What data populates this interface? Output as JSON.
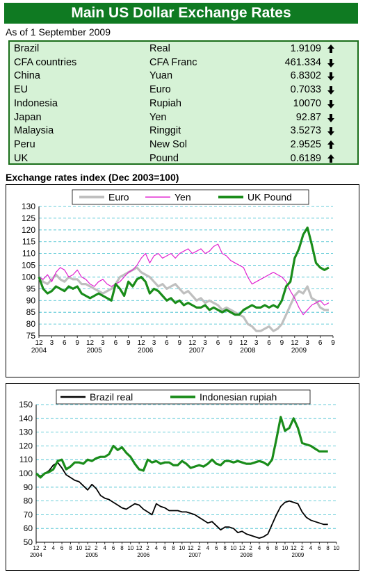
{
  "header": {
    "title": "Main US Dollar Exchange Rates",
    "as_of": "As of 1 September 2009",
    "color": "#0f7a22"
  },
  "rates": [
    {
      "country": "Brazil",
      "currency": "Real",
      "value": "1.9109",
      "direction": "up"
    },
    {
      "country": "CFA countries",
      "currency": "CFA Franc",
      "value": "461.334",
      "direction": "down"
    },
    {
      "country": "China",
      "currency": "Yuan",
      "value": "6.8302",
      "direction": "down"
    },
    {
      "country": "EU",
      "currency": "Euro",
      "value": "0.7033",
      "direction": "down"
    },
    {
      "country": "Indonesia",
      "currency": "Rupiah",
      "value": "10070",
      "direction": "down"
    },
    {
      "country": "Japan",
      "currency": "Yen",
      "value": "92.87",
      "direction": "down"
    },
    {
      "country": "Malaysia",
      "currency": "Ringgit",
      "value": "3.5273",
      "direction": "down"
    },
    {
      "country": "Peru",
      "currency": "New Sol",
      "value": "2.9525",
      "direction": "up"
    },
    {
      "country": "UK",
      "currency": "Pound",
      "value": "0.6189",
      "direction": "up"
    }
  ],
  "icons": {
    "up": "arrow-up-icon",
    "down": "arrow-down-icon"
  },
  "chart_data": [
    {
      "type": "line",
      "title": "Exchange rates index (Dec 2003=100)",
      "ylim": [
        75,
        130
      ],
      "yticks": [
        75,
        80,
        85,
        90,
        95,
        100,
        105,
        110,
        115,
        120,
        125,
        130
      ],
      "xlim": [
        0,
        69
      ],
      "month_ticks": [
        "12",
        "3",
        "6",
        "9",
        "12",
        "3",
        "6",
        "9",
        "12",
        "3",
        "6",
        "9",
        "12",
        "3",
        "6",
        "9",
        "12",
        "3",
        "6",
        "9",
        "12",
        "3",
        "6",
        "9"
      ],
      "year_labels": [
        {
          "label": "2004",
          "x": 0
        },
        {
          "label": "2005",
          "x": 13
        },
        {
          "label": "2006",
          "x": 25
        },
        {
          "label": "2007",
          "x": 37
        },
        {
          "label": "2008",
          "x": 49
        },
        {
          "label": "2009",
          "x": 61
        }
      ],
      "grid": true,
      "legend_position": "top",
      "series": [
        {
          "name": "Euro",
          "color": "#bfbfbf",
          "x": [
            0,
            1,
            2,
            3,
            4,
            5,
            6,
            7,
            8,
            9,
            10,
            11,
            12,
            13,
            14,
            15,
            16,
            17,
            18,
            19,
            20,
            21,
            22,
            23,
            24,
            25,
            26,
            27,
            28,
            29,
            30,
            31,
            32,
            33,
            34,
            35,
            36,
            37,
            38,
            39,
            40,
            41,
            42,
            43,
            44,
            45,
            46,
            47,
            48,
            49,
            50,
            51,
            52,
            53,
            54,
            55,
            56,
            57,
            58,
            59,
            60,
            61,
            62,
            63,
            64,
            65,
            66,
            67,
            68
          ],
          "y": [
            100,
            98,
            97,
            99,
            101,
            99,
            98,
            100,
            99,
            99,
            97,
            97,
            96,
            95,
            94,
            93,
            94,
            95,
            97,
            100,
            101,
            102,
            103,
            104,
            102,
            101,
            100,
            98,
            96,
            97,
            95,
            96,
            97,
            95,
            93,
            94,
            92,
            90,
            91,
            89,
            90,
            89,
            88,
            86,
            87,
            86,
            85,
            84,
            83,
            80,
            79,
            77,
            77,
            78,
            79,
            77,
            78,
            80,
            84,
            88,
            92,
            94,
            93,
            96,
            91,
            90,
            87,
            86,
            86
          ]
        },
        {
          "name": "Yen",
          "color": "#e020d0",
          "x": [
            0,
            1,
            2,
            3,
            4,
            5,
            6,
            7,
            8,
            9,
            10,
            11,
            12,
            13,
            14,
            15,
            16,
            17,
            18,
            19,
            20,
            21,
            22,
            23,
            24,
            25,
            26,
            27,
            28,
            29,
            30,
            31,
            32,
            33,
            34,
            35,
            36,
            37,
            38,
            39,
            40,
            41,
            42,
            43,
            44,
            45,
            46,
            47,
            48,
            49,
            50,
            51,
            52,
            53,
            54,
            55,
            56,
            57,
            58,
            59,
            60,
            61,
            62,
            63,
            64,
            65,
            66,
            67,
            68
          ],
          "y": [
            100,
            99,
            101,
            98,
            102,
            104,
            103,
            100,
            101,
            103,
            100,
            99,
            97,
            96,
            98,
            99,
            97,
            96,
            97,
            98,
            100,
            102,
            103,
            105,
            108,
            110,
            106,
            109,
            110,
            108,
            109,
            110,
            108,
            110,
            111,
            112,
            110,
            111,
            112,
            110,
            111,
            113,
            114,
            110,
            109,
            107,
            106,
            105,
            104,
            100,
            97,
            98,
            99,
            100,
            101,
            102,
            101,
            100,
            98,
            94,
            91,
            87,
            84,
            86,
            88,
            89,
            90,
            88,
            89
          ]
        },
        {
          "name": "UK Pound",
          "color": "#1a8c1a",
          "x": [
            0,
            1,
            2,
            3,
            4,
            5,
            6,
            7,
            8,
            9,
            10,
            11,
            12,
            13,
            14,
            15,
            16,
            17,
            18,
            19,
            20,
            21,
            22,
            23,
            24,
            25,
            26,
            27,
            28,
            29,
            30,
            31,
            32,
            33,
            34,
            35,
            36,
            37,
            38,
            39,
            40,
            41,
            42,
            43,
            44,
            45,
            46,
            47,
            48,
            49,
            50,
            51,
            52,
            53,
            54,
            55,
            56,
            57,
            58,
            59,
            60,
            61,
            62,
            63,
            64,
            65,
            66,
            67,
            68
          ],
          "y": [
            100,
            95,
            93,
            94,
            96,
            95,
            94,
            96,
            95,
            96,
            93,
            92,
            91,
            92,
            93,
            92,
            91,
            90,
            97,
            95,
            92,
            98,
            96,
            99,
            100,
            98,
            93,
            95,
            94,
            92,
            90,
            91,
            89,
            90,
            88,
            89,
            88,
            87,
            87,
            88,
            86,
            87,
            86,
            85,
            86,
            85,
            84,
            84,
            86,
            87,
            88,
            87,
            87,
            88,
            87,
            88,
            87,
            90,
            96,
            98,
            108,
            112,
            118,
            121,
            114,
            106,
            104,
            103,
            104
          ]
        }
      ]
    },
    {
      "type": "line",
      "ylim": [
        50,
        150
      ],
      "yticks": [
        50,
        60,
        70,
        80,
        90,
        100,
        110,
        120,
        130,
        140,
        150
      ],
      "xlim": [
        0,
        70
      ],
      "month_ticks": [
        "12",
        "2",
        "4",
        "6",
        "8",
        "10",
        "12",
        "2",
        "4",
        "6",
        "8",
        "10",
        "12",
        "2",
        "4",
        "6",
        "8",
        "10",
        "12",
        "2",
        "4",
        "6",
        "8",
        "10",
        "12",
        "2",
        "4",
        "6",
        "8",
        "10",
        "12",
        "2",
        "4",
        "6",
        "8",
        "10"
      ],
      "year_labels": [
        {
          "label": "2004",
          "x": 0
        },
        {
          "label": "2005",
          "x": 13
        },
        {
          "label": "2006",
          "x": 25
        },
        {
          "label": "2007",
          "x": 37
        },
        {
          "label": "2008",
          "x": 49
        },
        {
          "label": "2009",
          "x": 61
        }
      ],
      "grid": true,
      "legend_position": "top",
      "series": [
        {
          "name": "Brazil real",
          "color": "#000000",
          "x": [
            0,
            1,
            2,
            3,
            4,
            5,
            6,
            7,
            8,
            9,
            10,
            11,
            12,
            13,
            14,
            15,
            16,
            17,
            18,
            19,
            20,
            21,
            22,
            23,
            24,
            25,
            26,
            27,
            28,
            29,
            30,
            31,
            32,
            33,
            34,
            35,
            36,
            37,
            38,
            39,
            40,
            41,
            42,
            43,
            44,
            45,
            46,
            47,
            48,
            49,
            50,
            51,
            52,
            53,
            54,
            55,
            56,
            57,
            58,
            59,
            60,
            61,
            62,
            63,
            64,
            65,
            66,
            67,
            68
          ],
          "y": [
            100,
            98,
            100,
            102,
            106,
            108,
            104,
            99,
            97,
            95,
            94,
            91,
            88,
            92,
            89,
            84,
            82,
            81,
            79,
            77,
            75,
            74,
            76,
            78,
            77,
            74,
            72,
            70,
            78,
            76,
            75,
            73,
            73,
            73,
            72,
            72,
            71,
            70,
            68,
            66,
            64,
            65,
            62,
            59,
            61,
            61,
            60,
            57,
            58,
            56,
            55,
            54,
            53,
            54,
            56,
            63,
            70,
            76,
            79,
            80,
            79,
            78,
            72,
            68,
            66,
            65,
            64,
            63,
            63
          ]
        },
        {
          "name": "Indonesian rupiah",
          "color": "#1a8c1a",
          "x": [
            0,
            1,
            2,
            3,
            4,
            5,
            6,
            7,
            8,
            9,
            10,
            11,
            12,
            13,
            14,
            15,
            16,
            17,
            18,
            19,
            20,
            21,
            22,
            23,
            24,
            25,
            26,
            27,
            28,
            29,
            30,
            31,
            32,
            33,
            34,
            35,
            36,
            37,
            38,
            39,
            40,
            41,
            42,
            43,
            44,
            45,
            46,
            47,
            48,
            49,
            50,
            51,
            52,
            53,
            54,
            55,
            56,
            57,
            58,
            59,
            60,
            61,
            62,
            63,
            64,
            65,
            66,
            67,
            68
          ],
          "y": [
            100,
            97,
            100,
            101,
            103,
            109,
            110,
            103,
            105,
            108,
            108,
            107,
            110,
            109,
            111,
            112,
            112,
            114,
            120,
            117,
            119,
            115,
            112,
            107,
            103,
            102,
            110,
            108,
            109,
            107,
            108,
            108,
            106,
            106,
            109,
            107,
            104,
            105,
            106,
            105,
            107,
            110,
            107,
            106,
            109,
            109,
            108,
            109,
            108,
            107,
            107,
            108,
            109,
            108,
            106,
            110,
            125,
            141,
            131,
            133,
            140,
            133,
            122,
            121,
            120,
            118,
            116,
            116,
            116
          ]
        }
      ]
    }
  ]
}
